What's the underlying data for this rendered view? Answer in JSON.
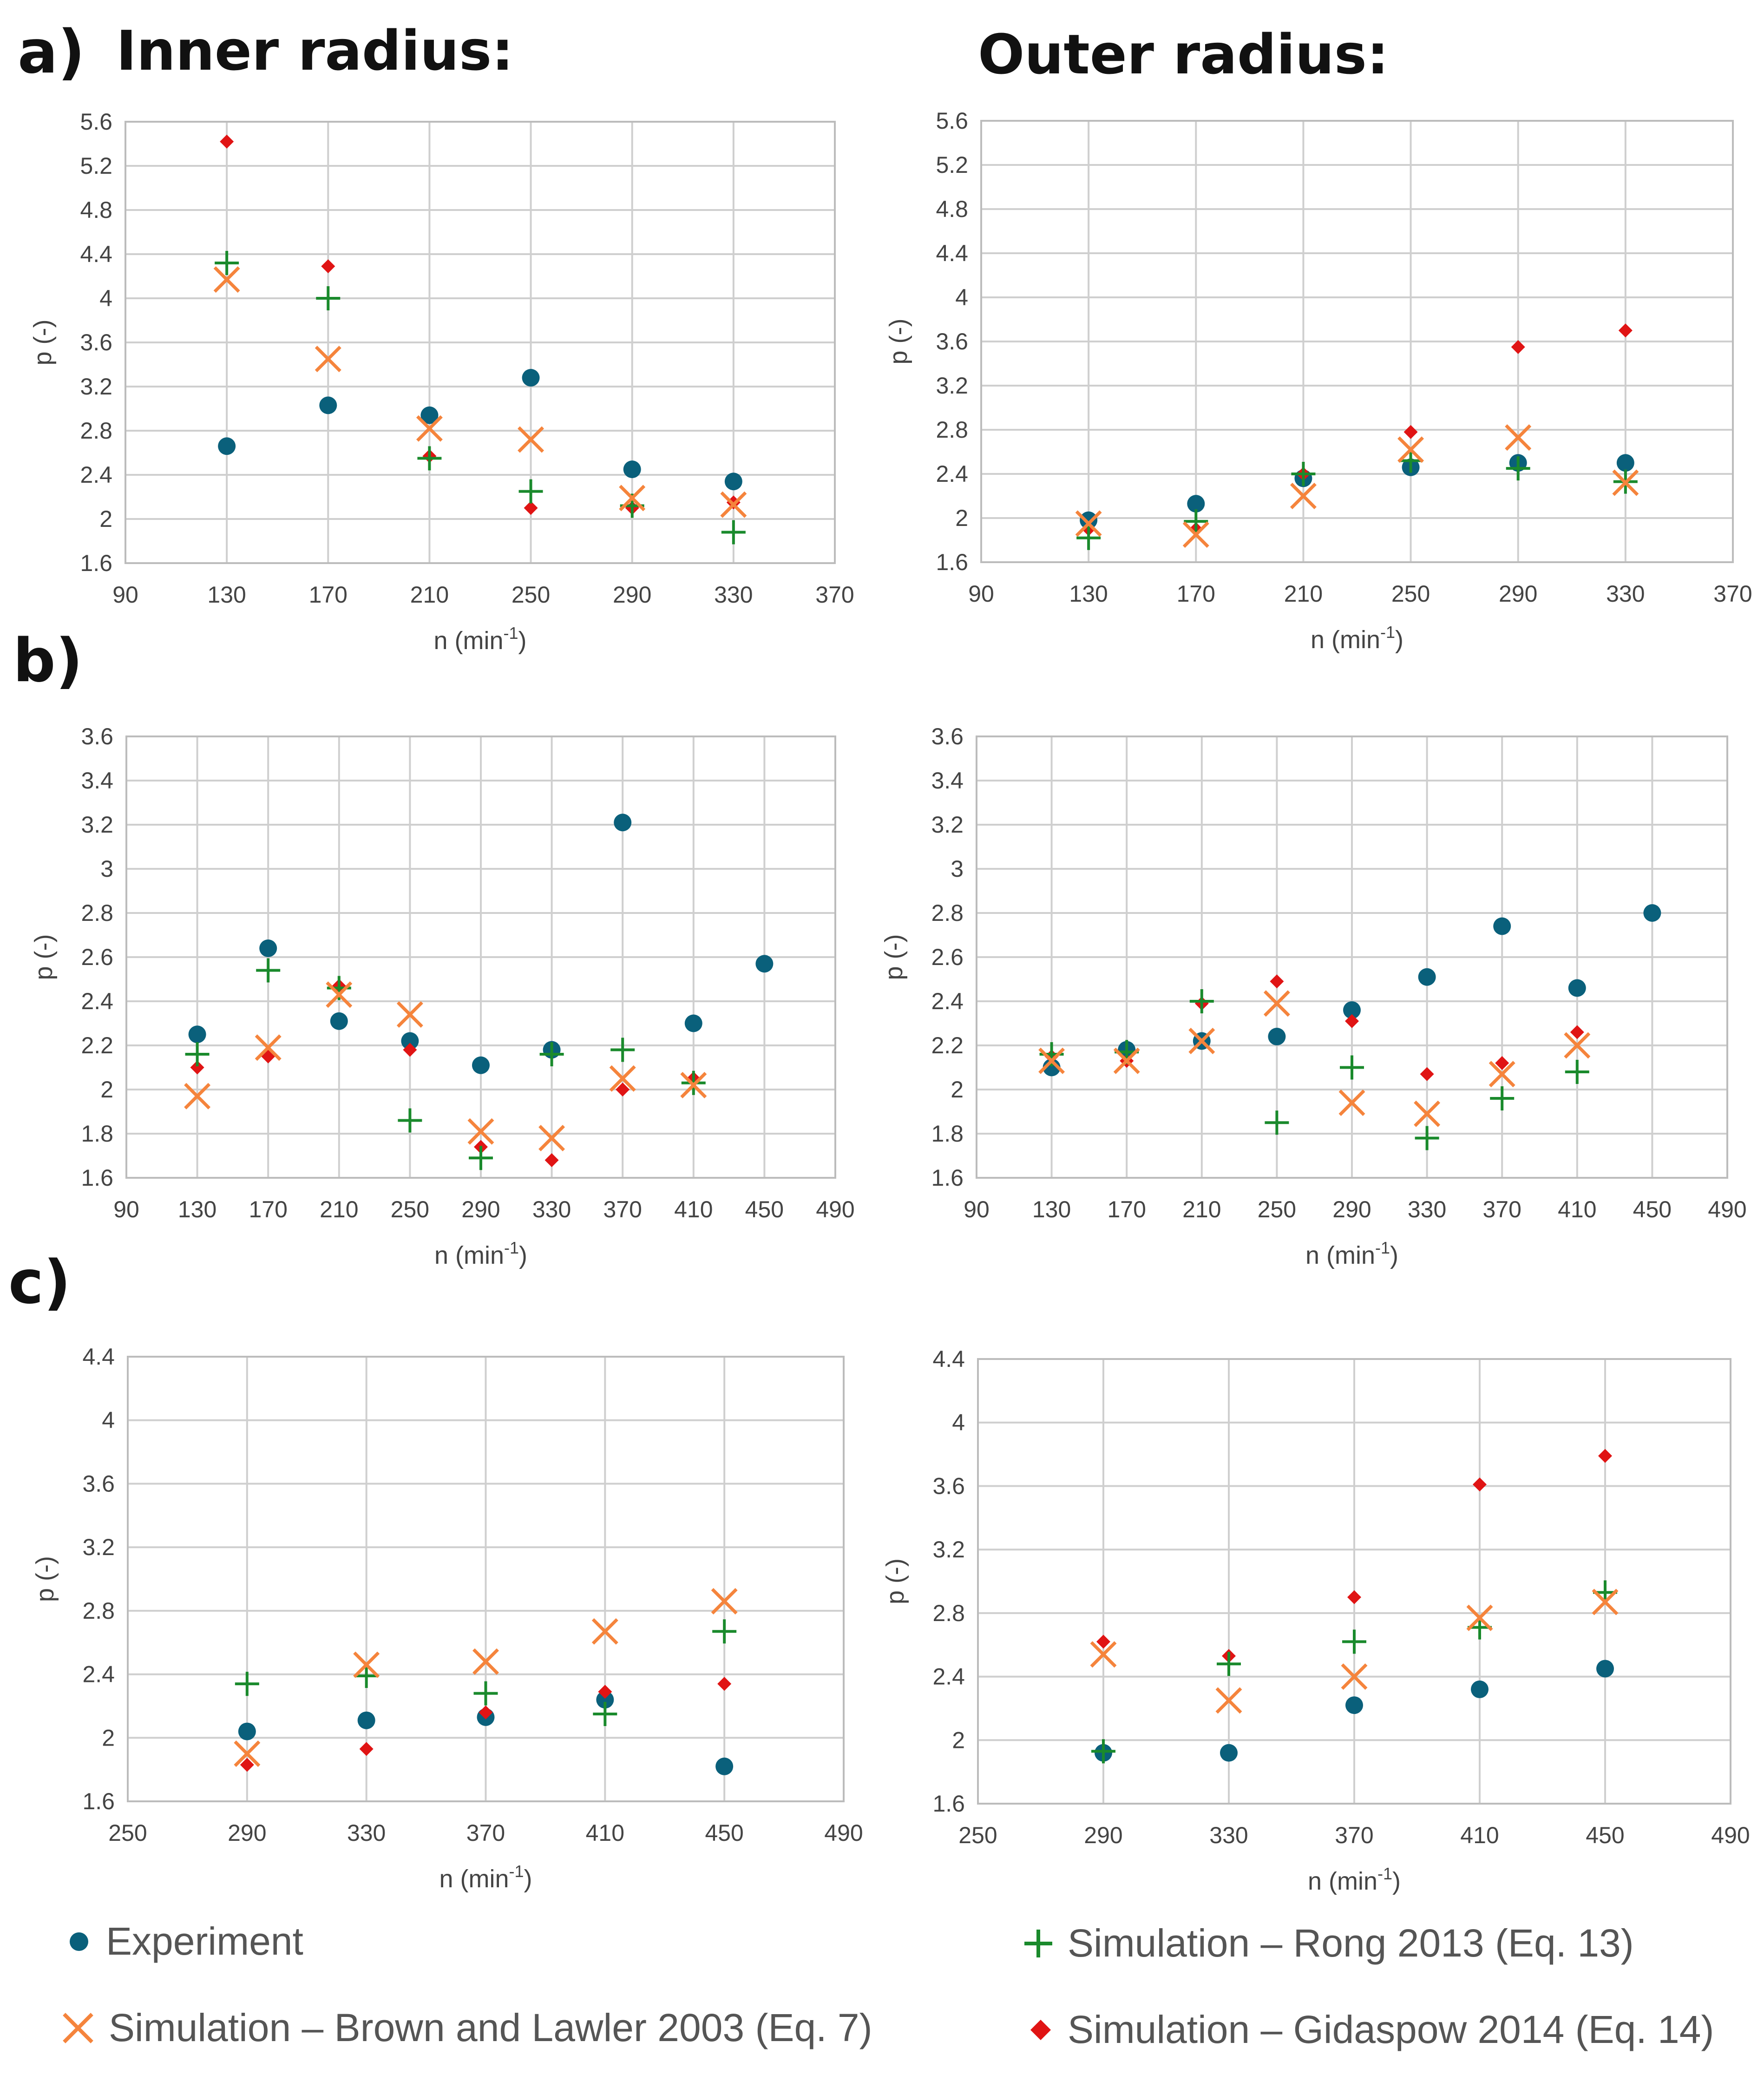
{
  "headers": {
    "panel_a": "a)",
    "panel_b": "b)",
    "panel_c": "c)",
    "inner": "Inner radius:",
    "outer": "Outer radius:"
  },
  "styles": {
    "experiment": {
      "color": "#0a607b",
      "marker": "circle"
    },
    "rong": {
      "color": "#1a8a2c",
      "marker": "plus"
    },
    "brown": {
      "color": "#f5843c",
      "marker": "x"
    },
    "gidaspow": {
      "color": "#e01414",
      "marker": "diamond"
    },
    "grid": "#cfcfcf",
    "frame": "#bcbcbc"
  },
  "legend": {
    "experiment": "Experiment",
    "rong": "Simulation – Rong 2013 (Eq. 13)",
    "brown": "Simulation – Brown and Lawler 2003 (Eq. 7)",
    "gidaspow": "Simulation – Gidaspow 2014 (Eq. 14)"
  },
  "chart_data": [
    {
      "id": "a-inner",
      "type": "scatter",
      "xlabel": "n (min",
      "xlabel_sup": "-1",
      "xlabel_end": ")",
      "ylabel": "p (-)",
      "xlim": [
        90,
        370
      ],
      "xstep": 40,
      "ylim": [
        1.6,
        5.6
      ],
      "ystep": 0.4,
      "series": [
        {
          "name": "Experiment",
          "key": "experiment",
          "x": [
            130,
            170,
            210,
            250,
            290,
            330
          ],
          "y": [
            2.66,
            3.03,
            2.94,
            3.28,
            2.45,
            2.34
          ]
        },
        {
          "name": "Simulation – Rong 2013 (Eq. 13)",
          "key": "rong",
          "x": [
            130,
            170,
            210,
            250,
            290,
            330
          ],
          "y": [
            4.32,
            4.0,
            2.55,
            2.25,
            2.12,
            1.88
          ]
        },
        {
          "name": "Simulation – Brown and Lawler 2003 (Eq. 7)",
          "key": "brown",
          "x": [
            130,
            170,
            210,
            250,
            290,
            330
          ],
          "y": [
            4.17,
            3.45,
            2.82,
            2.72,
            2.19,
            2.13
          ]
        },
        {
          "name": "Simulation – Gidaspow 2014 (Eq. 14)",
          "key": "gidaspow",
          "x": [
            130,
            170,
            210,
            250,
            290,
            330
          ],
          "y": [
            5.42,
            4.29,
            2.57,
            2.1,
            2.1,
            2.15
          ]
        }
      ]
    },
    {
      "id": "a-outer",
      "type": "scatter",
      "xlabel": "n (min",
      "xlabel_sup": "-1",
      "xlabel_end": ")",
      "ylabel": "p (-)",
      "xlim": [
        90,
        370
      ],
      "xstep": 40,
      "ylim": [
        1.6,
        5.6
      ],
      "ystep": 0.4,
      "series": [
        {
          "name": "Experiment",
          "key": "experiment",
          "x": [
            130,
            170,
            210,
            250,
            290,
            330
          ],
          "y": [
            1.98,
            2.13,
            2.36,
            2.46,
            2.5,
            2.5
          ]
        },
        {
          "name": "Simulation – Rong 2013 (Eq. 13)",
          "key": "rong",
          "x": [
            130,
            170,
            210,
            250,
            290,
            330
          ],
          "y": [
            1.82,
            1.97,
            2.4,
            2.52,
            2.45,
            2.33
          ]
        },
        {
          "name": "Simulation – Brown and Lawler 2003 (Eq. 7)",
          "key": "brown",
          "x": [
            130,
            170,
            210,
            250,
            290,
            330
          ],
          "y": [
            1.95,
            1.85,
            2.2,
            2.62,
            2.73,
            2.32
          ]
        },
        {
          "name": "Simulation – Gidaspow 2014 (Eq. 14)",
          "key": "gidaspow",
          "x": [
            130,
            170,
            210,
            250,
            290,
            330
          ],
          "y": [
            1.9,
            1.9,
            2.4,
            2.78,
            3.55,
            3.7
          ]
        }
      ]
    },
    {
      "id": "b-inner",
      "type": "scatter",
      "xlabel": "n (min",
      "xlabel_sup": "-1",
      "xlabel_end": ")",
      "ylabel": "p (-)",
      "xlim": [
        90,
        490
      ],
      "xstep": 40,
      "ylim": [
        1.6,
        3.6
      ],
      "ystep": 0.2,
      "series": [
        {
          "name": "Experiment",
          "key": "experiment",
          "x": [
            130,
            170,
            210,
            250,
            290,
            330,
            370,
            410,
            450
          ],
          "y": [
            2.25,
            2.64,
            2.31,
            2.22,
            2.11,
            2.18,
            3.21,
            2.3,
            2.57
          ]
        },
        {
          "name": "Simulation – Rong 2013 (Eq. 13)",
          "key": "rong",
          "x": [
            130,
            170,
            210,
            250,
            290,
            330,
            370,
            410
          ],
          "y": [
            2.16,
            2.54,
            2.46,
            1.86,
            1.69,
            2.16,
            2.18,
            2.03
          ]
        },
        {
          "name": "Simulation – Brown and Lawler 2003 (Eq. 7)",
          "key": "brown",
          "x": [
            130,
            170,
            210,
            250,
            290,
            330,
            370,
            410
          ],
          "y": [
            1.97,
            2.19,
            2.43,
            2.34,
            1.81,
            1.78,
            2.05,
            2.02
          ]
        },
        {
          "name": "Simulation – Gidaspow 2014 (Eq. 14)",
          "key": "gidaspow",
          "x": [
            130,
            170,
            210,
            250,
            290,
            330,
            370,
            410
          ],
          "y": [
            2.1,
            2.15,
            2.47,
            2.18,
            1.74,
            1.68,
            2.0,
            2.05
          ]
        }
      ]
    },
    {
      "id": "b-outer",
      "type": "scatter",
      "xlabel": "n (min",
      "xlabel_sup": "-1",
      "xlabel_end": ")",
      "ylabel": "p (-)",
      "xlim": [
        90,
        490
      ],
      "xstep": 40,
      "ylim": [
        1.6,
        3.6
      ],
      "ystep": 0.2,
      "series": [
        {
          "name": "Experiment",
          "key": "experiment",
          "x": [
            130,
            170,
            210,
            250,
            290,
            330,
            370,
            410,
            450
          ],
          "y": [
            2.1,
            2.18,
            2.22,
            2.24,
            2.36,
            2.51,
            2.74,
            2.46,
            2.8
          ]
        },
        {
          "name": "Simulation – Rong 2013 (Eq. 13)",
          "key": "rong",
          "x": [
            130,
            170,
            210,
            250,
            290,
            330,
            370,
            410
          ],
          "y": [
            2.16,
            2.17,
            2.4,
            1.85,
            2.1,
            1.78,
            1.96,
            2.08
          ]
        },
        {
          "name": "Simulation – Brown and Lawler 2003 (Eq. 7)",
          "key": "brown",
          "x": [
            130,
            170,
            210,
            250,
            290,
            330,
            370,
            410
          ],
          "y": [
            2.13,
            2.13,
            2.22,
            2.39,
            1.94,
            1.89,
            2.07,
            2.2
          ]
        },
        {
          "name": "Simulation – Gidaspow 2014 (Eq. 14)",
          "key": "gidaspow",
          "x": [
            130,
            170,
            210,
            250,
            290,
            330,
            370,
            410
          ],
          "y": [
            2.15,
            2.13,
            2.39,
            2.49,
            2.31,
            2.07,
            2.12,
            2.26
          ]
        }
      ]
    },
    {
      "id": "c-inner",
      "type": "scatter",
      "xlabel": "n (min",
      "xlabel_sup": "-1",
      "xlabel_end": ")",
      "ylabel": "p (-)",
      "xlim": [
        250,
        490
      ],
      "xstep": 40,
      "ylim": [
        1.6,
        4.4
      ],
      "ystep": 0.4,
      "series": [
        {
          "name": "Experiment",
          "key": "experiment",
          "x": [
            290,
            330,
            370,
            410,
            450
          ],
          "y": [
            2.04,
            2.11,
            2.13,
            2.24,
            1.82
          ]
        },
        {
          "name": "Simulation – Rong 2013 (Eq. 13)",
          "key": "rong",
          "x": [
            290,
            330,
            370,
            410,
            450
          ],
          "y": [
            2.34,
            2.39,
            2.28,
            2.15,
            2.67
          ]
        },
        {
          "name": "Simulation – Brown and Lawler 2003 (Eq. 7)",
          "key": "brown",
          "x": [
            290,
            330,
            370,
            410,
            450
          ],
          "y": [
            1.9,
            2.46,
            2.48,
            2.67,
            2.86
          ]
        },
        {
          "name": "Simulation – Gidaspow 2014 (Eq. 14)",
          "key": "gidaspow",
          "x": [
            290,
            330,
            370,
            410,
            450
          ],
          "y": [
            1.83,
            1.93,
            2.16,
            2.29,
            2.34
          ]
        }
      ]
    },
    {
      "id": "c-outer",
      "type": "scatter",
      "xlabel": "n (min",
      "xlabel_sup": "-1",
      "xlabel_end": ")",
      "ylabel": "p (-)",
      "xlim": [
        250,
        490
      ],
      "xstep": 40,
      "ylim": [
        1.6,
        4.4
      ],
      "ystep": 0.4,
      "series": [
        {
          "name": "Experiment",
          "key": "experiment",
          "x": [
            290,
            330,
            370,
            410,
            450
          ],
          "y": [
            1.92,
            1.92,
            2.22,
            2.32,
            2.45
          ]
        },
        {
          "name": "Simulation – Rong 2013 (Eq. 13)",
          "key": "rong",
          "x": [
            290,
            330,
            370,
            410,
            450
          ],
          "y": [
            1.93,
            2.48,
            2.62,
            2.71,
            2.93
          ]
        },
        {
          "name": "Simulation – Brown and Lawler 2003 (Eq. 7)",
          "key": "brown",
          "x": [
            290,
            330,
            370,
            410,
            450
          ],
          "y": [
            2.54,
            2.25,
            2.4,
            2.77,
            2.87
          ]
        },
        {
          "name": "Simulation – Gidaspow 2014 (Eq. 14)",
          "key": "gidaspow",
          "x": [
            290,
            330,
            370,
            410,
            450
          ],
          "y": [
            2.62,
            2.53,
            2.9,
            3.61,
            3.79
          ]
        }
      ]
    }
  ]
}
